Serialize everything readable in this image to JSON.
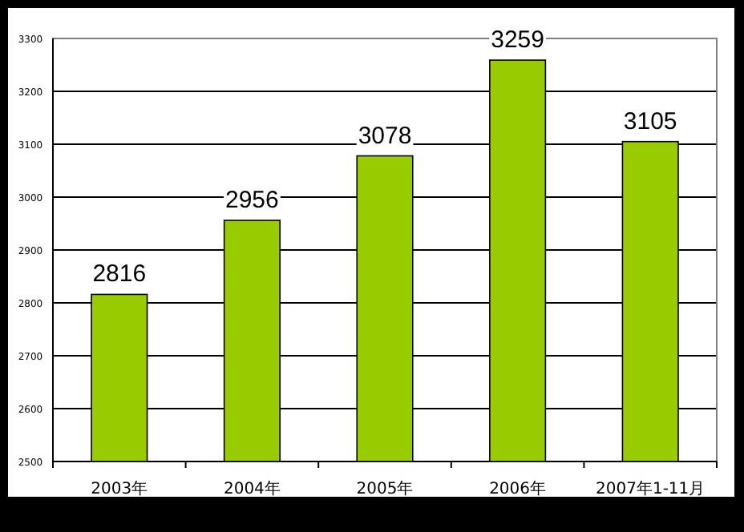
{
  "chart_data": {
    "type": "bar",
    "categories": [
      "2003年",
      "2004年",
      "2005年",
      "2006年",
      "2007年1-11月"
    ],
    "values": [
      2816,
      2956,
      3078,
      3259,
      3105
    ],
    "color": "#99cc00",
    "data_labels": true,
    "grid": "y",
    "ylim": [
      2500,
      3300
    ],
    "yticks": [
      2500,
      2600,
      2700,
      2800,
      2900,
      3000,
      3100,
      3200,
      3300
    ]
  }
}
